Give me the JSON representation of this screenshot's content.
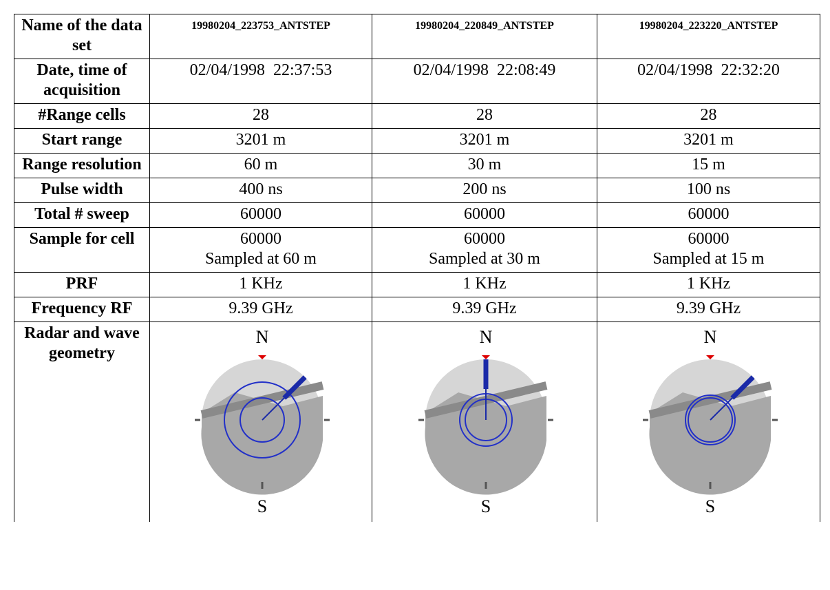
{
  "table": {
    "header": [
      "Name of the data set",
      "19980204_223753_ANTSTEP",
      "19980204_220849_ANTSTEP",
      "19980204_223220_ANTSTEP"
    ],
    "rows": [
      [
        "Date, time of acquisition",
        "02/04/1998  22:37:53",
        "02/04/1998  22:08:49",
        "02/04/1998  22:32:20"
      ],
      [
        "#Range cells",
        "28",
        "28",
        "28"
      ],
      [
        "Start range",
        "3201 m",
        "3201 m",
        "3201 m"
      ],
      [
        "Range resolution",
        "60 m",
        "30 m",
        "15 m"
      ],
      [
        "Pulse width",
        "400 ns",
        "200 ns",
        "100 ns"
      ],
      [
        "Total # sweep",
        "60000",
        "60000",
        "60000"
      ],
      [
        "Sample for cell",
        [
          "60000",
          "Sampled at 60 m"
        ],
        [
          "60000",
          "Sampled at 30 m"
        ],
        [
          "60000",
          "Sampled at 15 m"
        ]
      ],
      [
        "PRF",
        "1 KHz",
        "1 KHz",
        "1 KHz"
      ],
      [
        "Frequency RF",
        "9.39 GHz",
        "9.39 GHz",
        "9.39 GHz"
      ]
    ],
    "geometry": {
      "label": "Radar and wave geometry",
      "compasses": [
        {
          "north": "N",
          "south": "S"
        },
        {
          "north": "N",
          "south": "S"
        },
        {
          "north": "N",
          "south": "S"
        }
      ]
    }
  }
}
